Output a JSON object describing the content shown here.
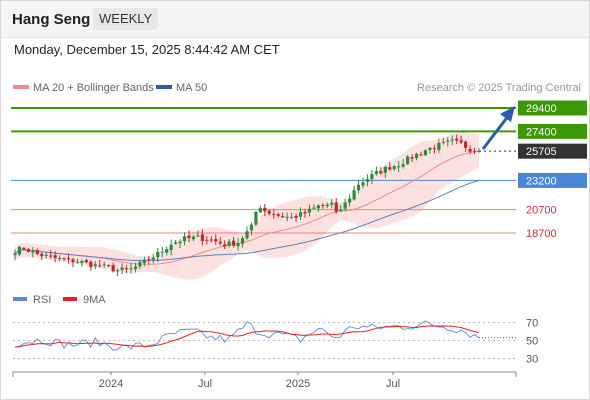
{
  "header": {
    "instrument": "Hang Seng",
    "timeframe": "WEEKLY",
    "datetime": "Monday, December 15, 2025 8:44:42 AM CET"
  },
  "legend": {
    "ma20_label": "MA 20 + Bollinger Bands",
    "ma50_label": "MA 50",
    "credit": "Research © 2025 Trading Central",
    "rsi_label": "RSI",
    "rsi_ma_label": "9MA"
  },
  "colors": {
    "green": "#3c9a0a",
    "blue": "#4a86d8",
    "red": "#f08080",
    "dark": "#333333",
    "ma20": "#f08a8a",
    "ma50": "#5a7fb8",
    "bands": "#fddcdc",
    "up_candle": "#2e8b3e",
    "down_candle": "#c62828",
    "rsi": "#5b8ad8",
    "rsi_ma": "#e32222",
    "arrow": "#2a5fa8"
  },
  "chart_data": {
    "type": "candlestick",
    "title": "Hang Seng",
    "x_labels": [
      "2024",
      "Jul",
      "2025",
      "Jul"
    ],
    "levels": [
      {
        "value": 29400,
        "label": "29400",
        "style": "resistance-green"
      },
      {
        "value": 27400,
        "label": "27400",
        "style": "resistance-green"
      },
      {
        "value": 25705,
        "label": "25705",
        "style": "last-price"
      },
      {
        "value": 23200,
        "label": "23200",
        "style": "pivot-blue"
      },
      {
        "value": 20700,
        "label": "20700",
        "style": "support-red"
      },
      {
        "value": 18700,
        "label": "18700",
        "style": "support-red"
      }
    ],
    "close_anchors": [
      [
        0,
        17200
      ],
      [
        2,
        17400
      ],
      [
        5,
        16900
      ],
      [
        8,
        16600
      ],
      [
        11,
        16400
      ],
      [
        14,
        16300
      ],
      [
        17,
        16000
      ],
      [
        20,
        15800
      ],
      [
        23,
        15500
      ],
      [
        26,
        15600
      ],
      [
        29,
        16200
      ],
      [
        32,
        16900
      ],
      [
        35,
        17800
      ],
      [
        38,
        18200
      ],
      [
        41,
        18300
      ],
      [
        44,
        18100
      ],
      [
        47,
        17700
      ],
      [
        50,
        17900
      ],
      [
        53,
        19200
      ],
      [
        54,
        20500
      ],
      [
        55,
        21000
      ],
      [
        56,
        20600
      ],
      [
        59,
        20200
      ],
      [
        62,
        20000
      ],
      [
        65,
        20400
      ],
      [
        68,
        21000
      ],
      [
        71,
        21200
      ],
      [
        72,
        20300
      ],
      [
        74,
        21200
      ],
      [
        77,
        22900
      ],
      [
        80,
        23600
      ],
      [
        83,
        24200
      ],
      [
        86,
        24600
      ],
      [
        89,
        25200
      ],
      [
        92,
        25800
      ],
      [
        95,
        26200
      ],
      [
        98,
        26500
      ],
      [
        100,
        26300
      ],
      [
        102,
        25900
      ],
      [
        104,
        25705
      ]
    ],
    "rsi_anchors": [
      [
        0,
        47
      ],
      [
        6,
        51
      ],
      [
        12,
        45
      ],
      [
        18,
        48
      ],
      [
        24,
        42
      ],
      [
        30,
        45
      ],
      [
        36,
        58
      ],
      [
        40,
        60
      ],
      [
        44,
        53
      ],
      [
        48,
        51
      ],
      [
        52,
        68
      ],
      [
        55,
        59
      ],
      [
        60,
        56
      ],
      [
        64,
        51
      ],
      [
        68,
        63
      ],
      [
        72,
        53
      ],
      [
        76,
        66
      ],
      [
        80,
        64
      ],
      [
        84,
        65
      ],
      [
        88,
        66
      ],
      [
        92,
        68
      ],
      [
        96,
        66
      ],
      [
        100,
        62
      ],
      [
        104,
        53
      ]
    ],
    "rsi_axis_labels": [
      70,
      50,
      30
    ],
    "rsi_last": 53
  }
}
